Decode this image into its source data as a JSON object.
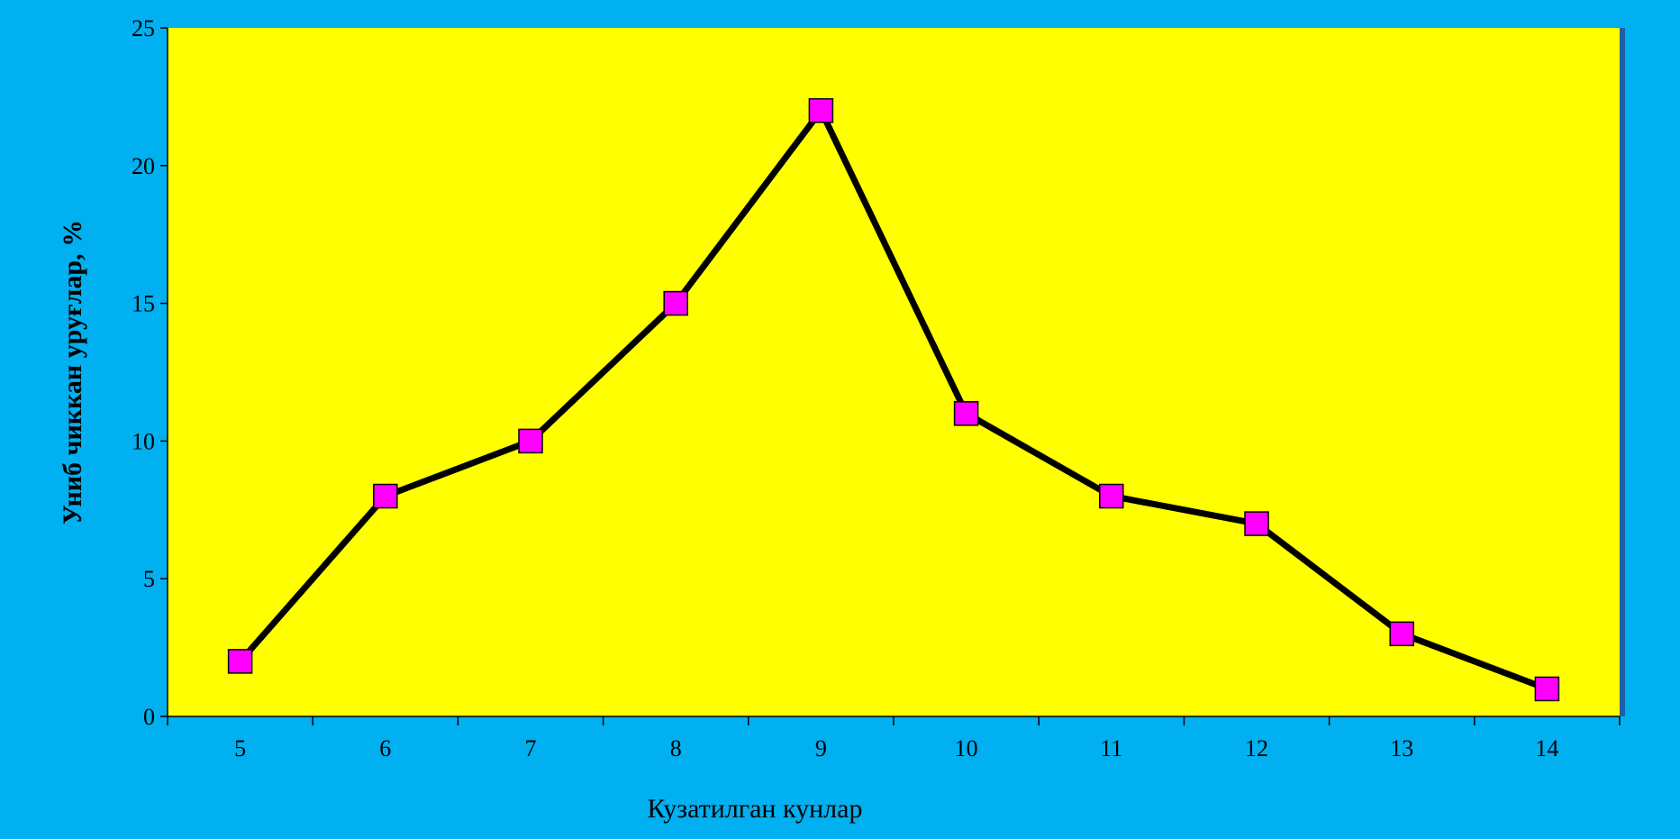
{
  "chart_data": {
    "type": "line",
    "title": "",
    "xlabel": "Кузатилган кунлар",
    "ylabel": "Униб чиккан уруғлар, %",
    "categories": [
      "5",
      "6",
      "7",
      "8",
      "9",
      "10",
      "11",
      "12",
      "13",
      "14"
    ],
    "series": [
      {
        "values": [
          2,
          8,
          10,
          15,
          22,
          11,
          8,
          7,
          3,
          1
        ]
      }
    ],
    "ylim": [
      0,
      25
    ],
    "yticks": [
      "0",
      "5",
      "10",
      "15",
      "20",
      "25"
    ],
    "grid": false,
    "legend": "none",
    "colors": {
      "background": "#00B0F0",
      "plot_area": "#FFFF00",
      "line": "#000000",
      "marker_fill": "#FF00FF",
      "marker_stroke": "#000000",
      "axis": "#000000"
    },
    "marker": "square"
  }
}
